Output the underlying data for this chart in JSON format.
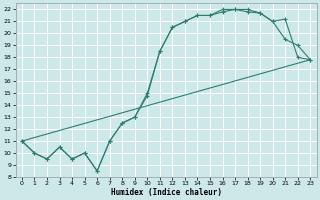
{
  "xlabel": "Humidex (Indice chaleur)",
  "bg_color": "#cde8e8",
  "grid_color": "#ffffff",
  "line_color": "#2e7d6e",
  "xlim": [
    -0.5,
    23.5
  ],
  "ylim": [
    8,
    22.5
  ],
  "xticks": [
    0,
    1,
    2,
    3,
    4,
    5,
    6,
    7,
    8,
    9,
    10,
    11,
    12,
    13,
    14,
    15,
    16,
    17,
    18,
    19,
    20,
    21,
    22,
    23
  ],
  "yticks": [
    8,
    9,
    10,
    11,
    12,
    13,
    14,
    15,
    16,
    17,
    18,
    19,
    20,
    21,
    22
  ],
  "line1_x": [
    0,
    1,
    2,
    3,
    4,
    5,
    6,
    7,
    8,
    9,
    10,
    11,
    12,
    13,
    14,
    15,
    16,
    17,
    18,
    19,
    20,
    21,
    22,
    23
  ],
  "line1_y": [
    11,
    10,
    9.5,
    10.5,
    9.5,
    10,
    8.5,
    11,
    12.5,
    13,
    15,
    18.5,
    20.5,
    21,
    21.5,
    21.5,
    22,
    22,
    22,
    21.7,
    21,
    19.5,
    19,
    17.8
  ],
  "line2_x": [
    0,
    1,
    2,
    3,
    4,
    5,
    6,
    7,
    8,
    9,
    10,
    11,
    12,
    13,
    14,
    15,
    16,
    17,
    18,
    19,
    20,
    21,
    22,
    23
  ],
  "line2_y": [
    11,
    10,
    9.5,
    10.5,
    9.5,
    10,
    8.5,
    11,
    12.5,
    13,
    14.8,
    18.5,
    20.5,
    21,
    21.5,
    21.5,
    21.8,
    22,
    21.8,
    21.7,
    21,
    21.2,
    18,
    17.8
  ],
  "line3_x": [
    0,
    23
  ],
  "line3_y": [
    11,
    17.8
  ]
}
